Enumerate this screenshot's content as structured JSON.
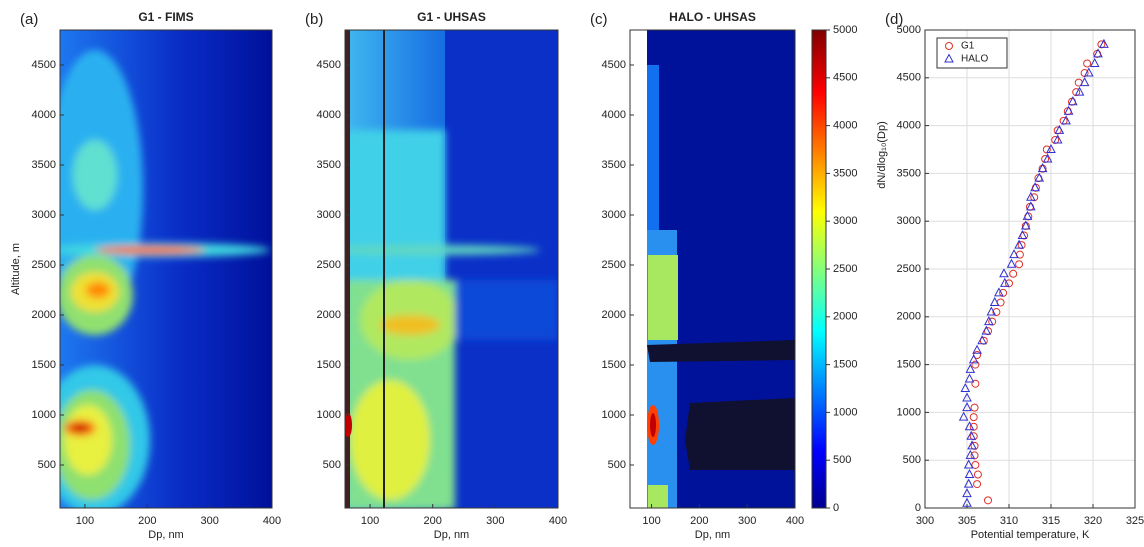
{
  "chart_data": [
    {
      "type": "contour",
      "panel_label": "(a)",
      "title": "G1 - FIMS",
      "xlabel": "Dp, nm",
      "ylabel": "Altitude, m",
      "xlim": [
        60,
        400
      ],
      "xticks": [
        100,
        200,
        300,
        400
      ],
      "ylim": [
        70,
        4850
      ],
      "yticks": [
        500,
        1000,
        1500,
        2000,
        2500,
        3000,
        3500,
        4000,
        4500
      ]
    },
    {
      "type": "contour",
      "panel_label": "(b)",
      "title": "G1 - UHSAS",
      "xlabel": "Dp, nm",
      "xlim": [
        60,
        400
      ],
      "xticks": [
        100,
        200,
        300,
        400
      ],
      "ylim": [
        70,
        4850
      ],
      "yticks": [
        500,
        1000,
        1500,
        2000,
        2500,
        3000,
        3500,
        4000,
        4500
      ]
    },
    {
      "type": "contour",
      "panel_label": "(c)",
      "title": "HALO - UHSAS",
      "xlabel": "Dp, nm",
      "xlim": [
        55,
        400
      ],
      "xticks": [
        100,
        200,
        300,
        400
      ],
      "ylim": [
        70,
        4850
      ],
      "yticks": [
        500,
        1000,
        1500,
        2000,
        2500,
        3000,
        3500,
        4000,
        4500
      ],
      "colorbar": {
        "label": "dN/dlog₁₀(Dp)",
        "lim": [
          0,
          5000
        ],
        "ticks": [
          0,
          500,
          1000,
          1500,
          2000,
          2500,
          3000,
          3500,
          4000,
          4500,
          5000
        ]
      }
    },
    {
      "type": "scatter",
      "panel_label": "(d)",
      "xlabel": "Potential temperature, K",
      "xlim": [
        300,
        325
      ],
      "xticks": [
        300,
        305,
        310,
        315,
        320,
        325
      ],
      "ylim": [
        0,
        5000
      ],
      "yticks": [
        0,
        500,
        1000,
        1500,
        2000,
        2500,
        3000,
        3500,
        4000,
        4500,
        5000
      ],
      "grid": true,
      "legend": "northwest",
      "series": [
        {
          "name": "G1",
          "color": "#e0302a",
          "marker": "circle",
          "y": [
            80,
            250,
            350,
            450,
            550,
            650,
            750,
            850,
            950,
            1050,
            1300,
            1500,
            1600,
            1750,
            1850,
            1950,
            2050,
            2150,
            2250,
            2350,
            2450,
            2550,
            2650,
            2750,
            2850,
            2950,
            3050,
            3150,
            3250,
            3350,
            3450,
            3550,
            3650,
            3750,
            3850,
            3950,
            4050,
            4150,
            4250,
            4350,
            4450,
            4550,
            4650,
            4750,
            4850
          ],
          "x": [
            307.5,
            306.2,
            306.3,
            306,
            305.9,
            305.9,
            305.8,
            305.8,
            305.8,
            305.9,
            306,
            306,
            306.2,
            307,
            307.5,
            308,
            308.5,
            309,
            309.3,
            310,
            310.5,
            311.2,
            311.3,
            311.5,
            311.8,
            312,
            312.3,
            312.5,
            313,
            313.2,
            313.5,
            314,
            314.3,
            314.5,
            315.5,
            315.8,
            316.5,
            317,
            317.5,
            318,
            318.3,
            319,
            319.3,
            320.5,
            321
          ]
        },
        {
          "name": "HALO",
          "color": "#3030d0",
          "marker": "triangle",
          "y": [
            50,
            150,
            250,
            350,
            450,
            550,
            650,
            750,
            850,
            950,
            1050,
            1150,
            1250,
            1350,
            1450,
            1550,
            1650,
            1750,
            1850,
            1950,
            2050,
            2150,
            2250,
            2350,
            2450,
            2550,
            2650,
            2750,
            2850,
            2950,
            3050,
            3150,
            3250,
            3350,
            3450,
            3550,
            3650,
            3750,
            3850,
            3950,
            4050,
            4150,
            4250,
            4350,
            4450,
            4550,
            4650,
            4750,
            4850
          ],
          "x": [
            305,
            305,
            305.2,
            305.3,
            305.2,
            305.4,
            305.6,
            305.5,
            305.3,
            304.6,
            305,
            305,
            304.8,
            305.3,
            305.4,
            305.8,
            306.2,
            306.8,
            307.3,
            307.6,
            307.9,
            308.3,
            308.8,
            309.5,
            309.4,
            310.3,
            310.6,
            311.2,
            311.6,
            312,
            312.2,
            312.6,
            312.6,
            313.1,
            313.6,
            314,
            314.6,
            315,
            315.8,
            316,
            316.8,
            317.1,
            317.6,
            318.4,
            319,
            319.5,
            320.2,
            320.6,
            321.3
          ]
        }
      ]
    }
  ]
}
